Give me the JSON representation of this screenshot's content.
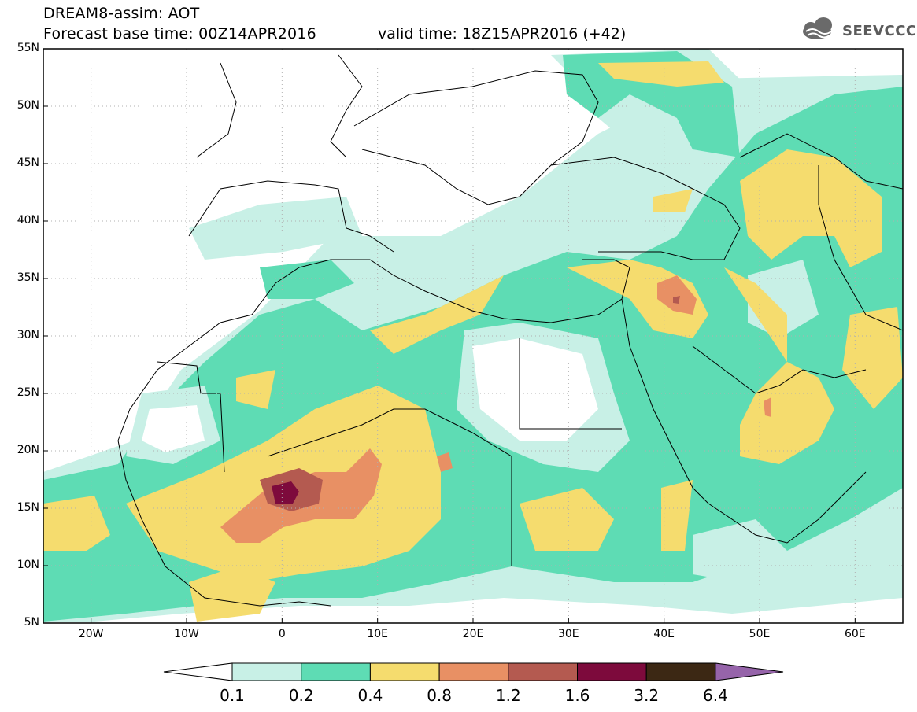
{
  "header": {
    "title_line1": "DREAM8-assim: AOT",
    "title_line2": "Forecast base time: 00Z14APR2016",
    "valid_time": "valid time: 18Z15APR2016 (+42)",
    "logo_text": "SEEVCCC"
  },
  "map": {
    "lon_range": [
      -25,
      65
    ],
    "lat_range": [
      5,
      55
    ],
    "lat_labels": [
      "55N",
      "50N",
      "45N",
      "40N",
      "35N",
      "30N",
      "25N",
      "20N",
      "15N",
      "10N",
      "5N"
    ],
    "lon_labels": [
      "20W",
      "10W",
      "0",
      "10E",
      "20E",
      "30E",
      "40E",
      "50E",
      "60E"
    ],
    "gridlines": true
  },
  "colorbar": {
    "labels": [
      "0.1",
      "0.2",
      "0.4",
      "0.8",
      "1.2",
      "1.6",
      "3.2",
      "6.4"
    ],
    "colors": [
      "#ffffff",
      "#c8f0e6",
      "#5edcb4",
      "#f5dc6e",
      "#e89064",
      "#b45a50",
      "#7d0a3c",
      "#3c2814",
      "#9664aa"
    ]
  }
}
